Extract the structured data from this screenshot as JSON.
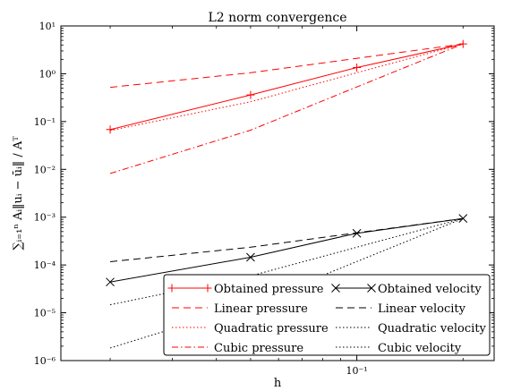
{
  "chart_data": {
    "type": "line",
    "title": "L2 norm convergence",
    "xlabel": "h",
    "ylabel": "∑ᵢ₌₁ⁿ Aᵢ‖uᵢ − ūᵢ‖ / Aᵀ",
    "x_scale": "log",
    "y_scale": "log",
    "xlim": [
      0.0145,
      0.245
    ],
    "ylim": [
      1e-06,
      10
    ],
    "x_ticks": [
      {
        "value": 0.1,
        "label": "10⁻¹"
      }
    ],
    "y_ticks": [
      {
        "value": 1e-06,
        "label": "10⁻⁶"
      },
      {
        "value": 1e-05,
        "label": "10⁻⁵"
      },
      {
        "value": 0.0001,
        "label": "10⁻⁴"
      },
      {
        "value": 0.001,
        "label": "10⁻³"
      },
      {
        "value": 0.01,
        "label": "10⁻²"
      },
      {
        "value": 0.1,
        "label": "10⁻¹"
      },
      {
        "value": 1,
        "label": "10⁰"
      },
      {
        "value": 10,
        "label": "10¹"
      }
    ],
    "grid": false,
    "legend_position": "lower-right",
    "legend_columns": 2,
    "series": [
      {
        "name": "Obtained pressure",
        "color": "#ff0000",
        "style": "solid",
        "marker": "plus",
        "x": [
          0.02,
          0.05,
          0.1,
          0.2
        ],
        "y": [
          0.068,
          0.36,
          1.35,
          4.2
        ]
      },
      {
        "name": "Linear pressure",
        "color": "#ff0000",
        "style": "dashed",
        "marker": "none",
        "x": [
          0.02,
          0.05,
          0.1,
          0.2
        ],
        "y": [
          0.52,
          1.05,
          2.1,
          4.2
        ]
      },
      {
        "name": "Quadratic pressure",
        "color": "#ff0000",
        "style": "dotted",
        "marker": "none",
        "x": [
          0.02,
          0.05,
          0.1,
          0.2
        ],
        "y": [
          0.065,
          0.26,
          1.05,
          4.2
        ]
      },
      {
        "name": "Cubic pressure",
        "color": "#ff0000",
        "style": "dashdot",
        "marker": "none",
        "x": [
          0.02,
          0.05,
          0.1,
          0.2
        ],
        "y": [
          0.0082,
          0.066,
          0.53,
          4.2
        ]
      },
      {
        "name": "Obtained velocity",
        "color": "#000000",
        "style": "solid",
        "marker": "x",
        "x": [
          0.02,
          0.05,
          0.1,
          0.2
        ],
        "y": [
          4.4e-05,
          0.000145,
          0.00046,
          0.00094
        ]
      },
      {
        "name": "Linear velocity",
        "color": "#000000",
        "style": "dashed",
        "marker": "none",
        "x": [
          0.02,
          0.05,
          0.1,
          0.2
        ],
        "y": [
          0.000117,
          0.000235,
          0.00047,
          0.00094
        ]
      },
      {
        "name": "Quadratic velocity",
        "color": "#000000",
        "style": "dotted",
        "marker": "none",
        "x": [
          0.02,
          0.05,
          0.1,
          0.2
        ],
        "y": [
          1.47e-05,
          5.9e-05,
          0.000235,
          0.00094
        ]
      },
      {
        "name": "Cubic velocity",
        "color": "#000000",
        "style": "dotted",
        "marker": "none",
        "x": [
          0.02,
          0.05,
          0.1,
          0.2
        ],
        "y": [
          1.84e-06,
          1.47e-05,
          0.000118,
          0.00094
        ]
      }
    ]
  }
}
